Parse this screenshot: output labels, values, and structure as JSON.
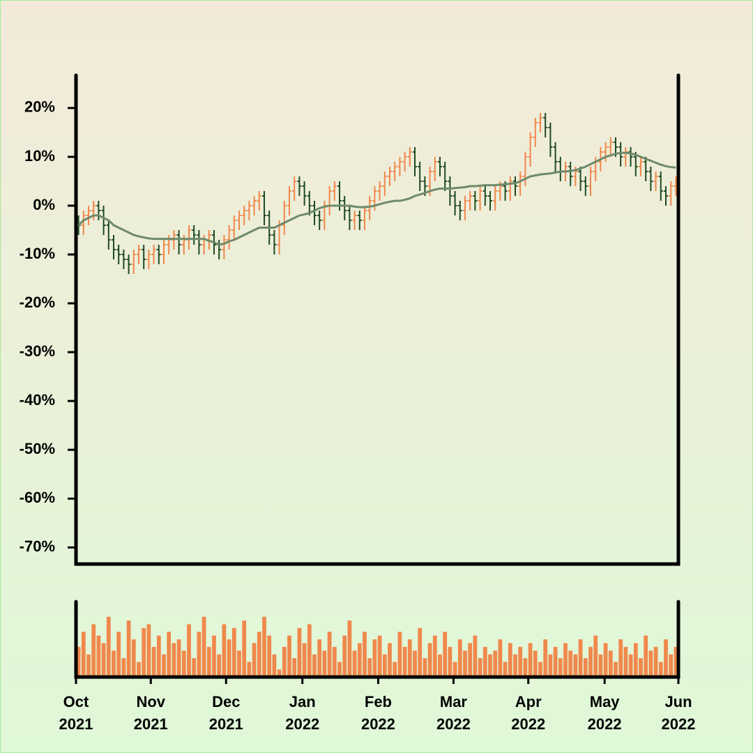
{
  "chart_data": [
    {
      "type": "ohlc",
      "xlim": [
        0,
        120
      ],
      "ylim": [
        -73.4,
        26.7
      ],
      "yticks": [
        {
          "value": -70,
          "label": "-70%"
        },
        {
          "value": -60,
          "label": "-60%"
        },
        {
          "value": -50,
          "label": "-50%"
        },
        {
          "value": -40,
          "label": "-40%"
        },
        {
          "value": -30,
          "label": "-30%"
        },
        {
          "value": -20,
          "label": "-20%"
        },
        {
          "value": -10,
          "label": "-10%"
        },
        {
          "value": 0,
          "label": "0%"
        },
        {
          "value": 10,
          "label": "10%"
        },
        {
          "value": 20,
          "label": "20%"
        }
      ],
      "up_color": "#f0884c",
      "down_color": "#1e4a22",
      "open": [
        -3,
        -4,
        -2,
        -1,
        0,
        -1,
        -4,
        -7,
        -9,
        -10,
        -11,
        -12,
        -10,
        -9,
        -11,
        -10,
        -9,
        -10,
        -8,
        -7,
        -6,
        -8,
        -7,
        -5,
        -6,
        -8,
        -7,
        -6,
        -8,
        -9,
        -7,
        -5,
        -3,
        -2,
        -1,
        0,
        1,
        2,
        -2,
        -6,
        -8,
        -4,
        0,
        3,
        5,
        4,
        2,
        0,
        -2,
        -3,
        0,
        3,
        4,
        1,
        -1,
        -3,
        -2,
        -3,
        -1,
        1,
        3,
        4,
        6,
        7,
        8,
        9,
        10,
        11,
        8,
        5,
        4,
        7,
        9,
        8,
        5,
        2,
        0,
        -1,
        1,
        2,
        1,
        3,
        2,
        1,
        3,
        4,
        3,
        5,
        4,
        6,
        10,
        14,
        17,
        18,
        16,
        12,
        9,
        7,
        8,
        6,
        7,
        5,
        4,
        7,
        9,
        11,
        12,
        13,
        12,
        10,
        11,
        10,
        8,
        9,
        7,
        5,
        6,
        3,
        2,
        4
      ],
      "high": [
        -2,
        -1,
        0,
        1,
        1,
        0,
        -3,
        -6,
        -8,
        -9,
        -10,
        -9,
        -8,
        -8,
        -9,
        -8,
        -8,
        -7,
        -6,
        -5,
        -5,
        -6,
        -4,
        -4,
        -5,
        -6,
        -5,
        -5,
        -7,
        -6,
        -4,
        -2,
        -1,
        0,
        1,
        2,
        3,
        3,
        -1,
        -5,
        -3,
        1,
        4,
        6,
        6,
        5,
        3,
        1,
        -1,
        1,
        4,
        5,
        5,
        2,
        0,
        -1,
        -1,
        0,
        2,
        4,
        5,
        7,
        8,
        9,
        10,
        11,
        12,
        12,
        9,
        6,
        8,
        10,
        10,
        9,
        6,
        3,
        1,
        2,
        3,
        3,
        4,
        4,
        3,
        4,
        5,
        5,
        6,
        6,
        7,
        11,
        15,
        18,
        19,
        19,
        17,
        13,
        10,
        9,
        9,
        8,
        8,
        6,
        8,
        10,
        12,
        13,
        14,
        14,
        13,
        12,
        12,
        11,
        10,
        10,
        8,
        7,
        7,
        4,
        5,
        6
      ],
      "low": [
        -6,
        -6,
        -4,
        -3,
        -3,
        -6,
        -9,
        -11,
        -12,
        -13,
        -14,
        -14,
        -12,
        -13,
        -13,
        -12,
        -12,
        -12,
        -10,
        -9,
        -10,
        -10,
        -9,
        -8,
        -10,
        -10,
        -9,
        -10,
        -11,
        -11,
        -9,
        -7,
        -5,
        -4,
        -3,
        -2,
        -1,
        -4,
        -8,
        -10,
        -10,
        -6,
        -2,
        1,
        2,
        0,
        -2,
        -4,
        -5,
        -5,
        -2,
        1,
        -1,
        -3,
        -5,
        -5,
        -5,
        -5,
        -3,
        -1,
        1,
        2,
        4,
        5,
        6,
        7,
        8,
        6,
        3,
        2,
        2,
        5,
        6,
        3,
        0,
        -2,
        -3,
        -3,
        -1,
        -1,
        -1,
        0,
        -1,
        -1,
        1,
        1,
        1,
        2,
        2,
        4,
        8,
        12,
        15,
        14,
        10,
        7,
        5,
        5,
        4,
        4,
        3,
        2,
        2,
        5,
        7,
        9,
        10,
        10,
        8,
        8,
        8,
        6,
        6,
        5,
        3,
        3,
        1,
        0,
        0,
        2
      ],
      "close": [
        -4,
        -2,
        -1,
        0,
        -1,
        -4,
        -7,
        -9,
        -10,
        -11,
        -12,
        -10,
        -9,
        -11,
        -10,
        -9,
        -10,
        -8,
        -7,
        -6,
        -8,
        -7,
        -5,
        -6,
        -8,
        -7,
        -6,
        -8,
        -9,
        -7,
        -5,
        -3,
        -2,
        -1,
        0,
        1,
        2,
        -2,
        -6,
        -8,
        -4,
        0,
        3,
        5,
        4,
        2,
        0,
        -2,
        -3,
        0,
        3,
        4,
        1,
        -1,
        -3,
        -2,
        -3,
        -1,
        1,
        3,
        4,
        6,
        7,
        8,
        9,
        10,
        11,
        8,
        5,
        4,
        7,
        9,
        8,
        5,
        2,
        0,
        -1,
        1,
        2,
        1,
        3,
        2,
        1,
        3,
        4,
        3,
        5,
        4,
        6,
        10,
        14,
        17,
        18,
        16,
        12,
        9,
        7,
        8,
        6,
        7,
        5,
        4,
        7,
        9,
        11,
        12,
        13,
        12,
        10,
        11,
        10,
        8,
        9,
        7,
        5,
        6,
        3,
        2,
        4,
        5
      ],
      "moving_average": {
        "color": "#6e8a6a",
        "values": [
          -4,
          -3,
          -2.5,
          -2,
          -2,
          -2.5,
          -3,
          -4,
          -4.5,
          -5,
          -5.5,
          -6,
          -6.3,
          -6.5,
          -6.7,
          -6.8,
          -6.8,
          -6.8,
          -6.8,
          -6.8,
          -6.8,
          -6.8,
          -6.8,
          -6.8,
          -6.8,
          -6.8,
          -7.2,
          -7.5,
          -8,
          -7.8,
          -7.3,
          -7,
          -6.5,
          -6,
          -5.5,
          -5,
          -4.5,
          -4.5,
          -4.5,
          -4.5,
          -4,
          -3.5,
          -3,
          -2.5,
          -2,
          -1.8,
          -1.5,
          -1,
          -0.5,
          -0.2,
          0,
          0,
          0,
          0,
          0,
          -0.2,
          -0.3,
          -0.3,
          -0.2,
          0,
          0.3,
          0.6,
          0.8,
          1,
          1,
          1.2,
          1.5,
          2,
          2.3,
          2.6,
          3,
          3.3,
          3.5,
          3.5,
          3.5,
          3.6,
          3.7,
          3.8,
          4,
          4,
          4.1,
          4.2,
          4.2,
          4.2,
          4.3,
          4.4,
          4.5,
          4.6,
          5,
          5.5,
          6,
          6.2,
          6.4,
          6.5,
          6.6,
          6.8,
          7,
          7,
          7.1,
          7.3,
          7.6,
          8,
          8.5,
          9,
          9.5,
          10,
          10.3,
          10.6,
          10.8,
          10.8,
          10.7,
          10.4,
          10,
          9.6,
          9.2,
          8.8,
          8.4,
          8.1,
          7.9,
          7.8
        ]
      }
    },
    {
      "type": "bar",
      "xlim": [
        0,
        120
      ],
      "ylim": [
        0,
        100
      ],
      "color": "#f0884c",
      "xticks": [
        {
          "value": 0,
          "label": "Oct 2021"
        },
        {
          "value": 14.9,
          "label": "Nov 2021"
        },
        {
          "value": 29.9,
          "label": "Dec 2021"
        },
        {
          "value": 45.1,
          "label": "Jan 2022"
        },
        {
          "value": 60.2,
          "label": "Feb 2022"
        },
        {
          "value": 75.2,
          "label": "Mar 2022"
        },
        {
          "value": 90.1,
          "label": "Apr 2022"
        },
        {
          "value": 105.3,
          "label": "May 2022"
        },
        {
          "value": 120,
          "label": "Jun 2022"
        }
      ],
      "values": [
        40,
        60,
        30,
        70,
        55,
        45,
        80,
        35,
        60,
        25,
        75,
        50,
        20,
        65,
        70,
        40,
        55,
        30,
        60,
        45,
        50,
        35,
        70,
        25,
        60,
        80,
        40,
        55,
        30,
        70,
        50,
        65,
        35,
        75,
        20,
        45,
        60,
        80,
        55,
        30,
        10,
        40,
        55,
        25,
        65,
        45,
        70,
        30,
        50,
        35,
        60,
        40,
        20,
        55,
        75,
        35,
        45,
        60,
        25,
        50,
        55,
        30,
        45,
        20,
        60,
        40,
        50,
        35,
        65,
        25,
        45,
        55,
        30,
        60,
        40,
        20,
        50,
        35,
        45,
        55,
        25,
        40,
        30,
        35,
        50,
        20,
        45,
        30,
        40,
        25,
        45,
        35,
        20,
        50,
        30,
        40,
        25,
        45,
        35,
        30,
        50,
        25,
        40,
        55,
        30,
        45,
        35,
        20,
        50,
        40,
        30,
        45,
        25,
        55,
        35,
        40,
        20,
        50,
        30,
        40
      ]
    }
  ]
}
